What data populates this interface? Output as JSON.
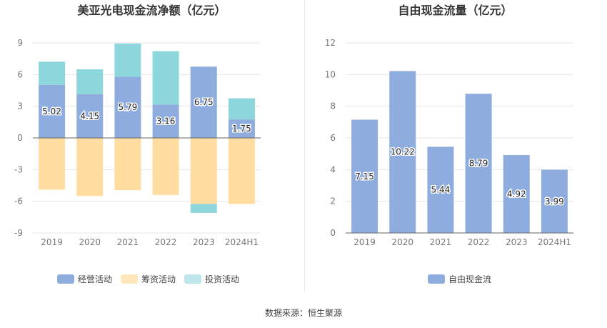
{
  "source": "数据来源：恒生聚源",
  "colors": {
    "operating": "#8eadde",
    "financing": "#ffdda0",
    "investing": "#8dd6dc",
    "free_cash": "#8eadde",
    "axis": "#666666",
    "grid": "#e6e6e6"
  },
  "chart_data": [
    {
      "type": "bar",
      "stacked": true,
      "title": "美亚光电现金流净额（亿元）",
      "categories": [
        "2019",
        "2020",
        "2021",
        "2022",
        "2023",
        "2024H1"
      ],
      "y_ticks": [
        "9",
        "6",
        "3",
        "0",
        "-3",
        "-6",
        "-9"
      ],
      "ylim": [
        -9,
        9
      ],
      "series": [
        {
          "name": "经营活动",
          "color": "#8eadde",
          "values": [
            5.02,
            4.15,
            5.79,
            3.16,
            6.75,
            1.75
          ],
          "labels": [
            "5.02",
            "4.15",
            "5.79",
            "3.16",
            "6.75",
            "1.75"
          ]
        },
        {
          "name": "筹资活动",
          "color": "#ffdda0",
          "values": [
            -4.9,
            -5.5,
            -4.95,
            -5.4,
            -6.25,
            -6.25
          ]
        },
        {
          "name": "投资活动",
          "color": "#8dd6dc",
          "values": [
            2.2,
            2.35,
            3.15,
            5.05,
            -0.85,
            2.0
          ]
        }
      ],
      "legend": [
        "经营活动",
        "筹资活动",
        "投资活动"
      ]
    },
    {
      "type": "bar",
      "title": "自由现金流量（亿元）",
      "categories": [
        "2019",
        "2020",
        "2021",
        "2022",
        "2023",
        "2024H1"
      ],
      "y_ticks": [
        "12",
        "10",
        "8",
        "6",
        "4",
        "2",
        "0"
      ],
      "ylim": [
        0,
        12
      ],
      "series": [
        {
          "name": "自由现金流",
          "color": "#8eadde",
          "values": [
            7.15,
            10.22,
            5.44,
            8.79,
            4.92,
            3.99
          ],
          "labels": [
            "7.15",
            "10.22",
            "5.44",
            "8.79",
            "4.92",
            "3.99"
          ]
        }
      ],
      "legend": [
        "自由现金流"
      ]
    }
  ]
}
